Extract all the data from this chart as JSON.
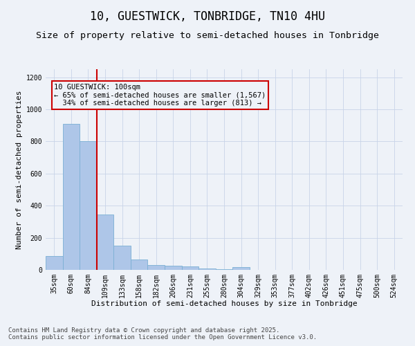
{
  "title": "10, GUESTWICK, TONBRIDGE, TN10 4HU",
  "subtitle": "Size of property relative to semi-detached houses in Tonbridge",
  "xlabel": "Distribution of semi-detached houses by size in Tonbridge",
  "ylabel": "Number of semi-detached properties",
  "categories": [
    "35sqm",
    "60sqm",
    "84sqm",
    "109sqm",
    "133sqm",
    "158sqm",
    "182sqm",
    "206sqm",
    "231sqm",
    "255sqm",
    "280sqm",
    "304sqm",
    "329sqm",
    "353sqm",
    "377sqm",
    "402sqm",
    "426sqm",
    "451sqm",
    "475sqm",
    "500sqm",
    "524sqm"
  ],
  "values": [
    85,
    910,
    800,
    345,
    150,
    65,
    30,
    25,
    20,
    10,
    5,
    18,
    0,
    0,
    0,
    0,
    0,
    0,
    0,
    0,
    0
  ],
  "bar_color": "#aec6e8",
  "bar_edge_color": "#7aafd4",
  "grid_color": "#c8d4e8",
  "background_color": "#eef2f8",
  "annotation_text": "10 GUESTWICK: 100sqm\n← 65% of semi-detached houses are smaller (1,567)\n  34% of semi-detached houses are larger (813) →",
  "redline_x": 2.5,
  "annotation_box_color": "#cc0000",
  "ylim": [
    0,
    1250
  ],
  "yticks": [
    0,
    200,
    400,
    600,
    800,
    1000,
    1200
  ],
  "footer": "Contains HM Land Registry data © Crown copyright and database right 2025.\nContains public sector information licensed under the Open Government Licence v3.0.",
  "title_fontsize": 12,
  "subtitle_fontsize": 9.5,
  "axis_label_fontsize": 8,
  "tick_fontsize": 7,
  "footer_fontsize": 6.5,
  "annotation_fontsize": 7.5
}
